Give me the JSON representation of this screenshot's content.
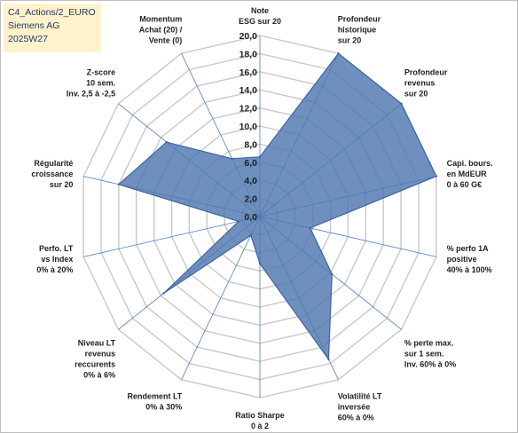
{
  "header": {
    "line1": "C4_Actions/2_EURO",
    "line2": "Siemens AG",
    "line3": "2025W27"
  },
  "chart_data": {
    "type": "radar",
    "ylim": [
      0,
      20
    ],
    "ticks": [
      "0,0",
      "2,0",
      "4,0",
      "6,0",
      "8,0",
      "10,0",
      "12,0",
      "14,0",
      "16,0",
      "18,0",
      "20,0"
    ],
    "axes": [
      [
        "Note",
        "ESG sur 20"
      ],
      [
        "Profondeur",
        "historique",
        "sur 20"
      ],
      [
        "Profondeur",
        "revenus",
        "sur 20"
      ],
      [
        "Capi. bours.",
        "en MdEUR",
        "0 à 60 G€"
      ],
      [
        "% perfo 1A",
        "positive",
        "40% à 100%"
      ],
      [
        "% perte max.",
        "sur 1 sem.",
        "Inv. 60% à 0%"
      ],
      [
        "Volatilité LT",
        "inversée",
        "60% à 0%"
      ],
      [
        "Ratio Sharpe",
        "0 à 2"
      ],
      [
        "Rendement LT",
        "0% à 30%"
      ],
      [
        "Niveau LT",
        "revenus",
        "reccurents",
        "0% à 6%"
      ],
      [
        "Perfo. LT",
        "vs Index",
        "0% à 20%"
      ],
      [
        "Régularité",
        "croissance",
        "sur 20"
      ],
      [
        "Z-score",
        "10 sem.",
        "Inv. 2,5 à -2,5"
      ],
      [
        "Momentum",
        "Achat (20) /",
        "Vente (0)"
      ]
    ],
    "series": [
      {
        "values": [
          6.6,
          20,
          20,
          20,
          5.7,
          10.2,
          17.5,
          5.2,
          2.3,
          13.6,
          2.4,
          16.0,
          13.2,
          7.1
        ]
      }
    ],
    "colors": {
      "fill": "#4f78b0",
      "stroke": "#3e64a3",
      "grid": "#c8c8c8",
      "spoke": "#4a7ec8"
    }
  }
}
